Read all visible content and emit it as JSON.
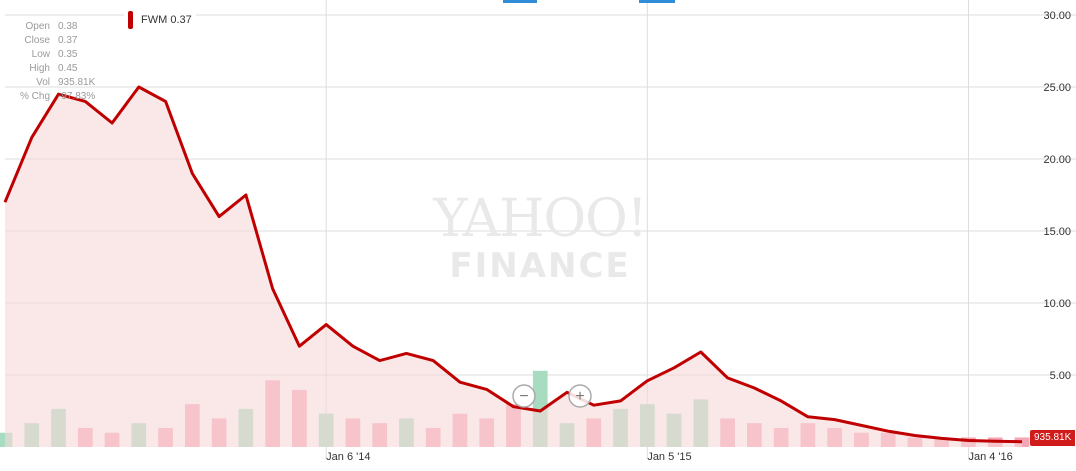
{
  "chart_data": {
    "type": "line",
    "series": [
      {
        "name": "FWM",
        "x": [
          "2013-01",
          "2013-02",
          "2013-03",
          "2013-04",
          "2013-05",
          "2013-06",
          "2013-07",
          "2013-08",
          "2013-09",
          "2013-10",
          "2013-11",
          "2013-12",
          "2014-01",
          "2014-02",
          "2014-03",
          "2014-04",
          "2014-05",
          "2014-06",
          "2014-07",
          "2014-08",
          "2014-09",
          "2014-10",
          "2014-11",
          "2014-12",
          "2015-01",
          "2015-02",
          "2015-03",
          "2015-04",
          "2015-05",
          "2015-06",
          "2015-07",
          "2015-08",
          "2015-09",
          "2015-10",
          "2015-11",
          "2015-12",
          "2016-01",
          "2016-02",
          "2016-03"
        ],
        "values": [
          17.0,
          21.5,
          24.5,
          24.0,
          22.5,
          25.0,
          24.0,
          19.0,
          16.0,
          17.5,
          11.0,
          7.0,
          8.5,
          7.0,
          6.0,
          6.5,
          6.0,
          4.5,
          4.0,
          2.8,
          2.5,
          3.8,
          2.9,
          3.2,
          4.6,
          5.5,
          6.6,
          4.8,
          4.1,
          3.2,
          2.1,
          1.9,
          1.5,
          1.1,
          0.8,
          0.6,
          0.45,
          0.4,
          0.37
        ]
      }
    ],
    "volume": {
      "x": [
        "2013-01",
        "2013-02",
        "2013-03",
        "2013-04",
        "2013-05",
        "2013-06",
        "2013-07",
        "2013-08",
        "2013-09",
        "2013-10",
        "2013-11",
        "2013-12",
        "2014-01",
        "2014-02",
        "2014-03",
        "2014-04",
        "2014-05",
        "2014-06",
        "2014-07",
        "2014-08",
        "2014-09",
        "2014-10",
        "2014-11",
        "2014-12",
        "2015-01",
        "2015-02",
        "2015-03",
        "2015-04",
        "2015-05",
        "2015-06",
        "2015-07",
        "2015-08",
        "2015-09",
        "2015-10",
        "2015-11",
        "2015-12",
        "2016-01",
        "2016-02",
        "2016-03"
      ],
      "values": [
        0.3,
        0.5,
        0.8,
        0.4,
        0.3,
        0.5,
        0.4,
        0.9,
        0.6,
        0.8,
        1.4,
        1.2,
        0.7,
        0.6,
        0.5,
        0.6,
        0.4,
        0.7,
        0.6,
        0.9,
        1.6,
        0.5,
        0.6,
        0.8,
        0.9,
        0.7,
        1.0,
        0.6,
        0.5,
        0.4,
        0.5,
        0.4,
        0.3,
        0.3,
        0.2,
        0.2,
        0.2,
        0.2,
        0.2
      ],
      "direction": [
        "up",
        "up",
        "up",
        "down",
        "down",
        "up",
        "down",
        "down",
        "down",
        "up",
        "down",
        "down",
        "up",
        "down",
        "down",
        "up",
        "down",
        "down",
        "down",
        "down",
        "up",
        "up",
        "down",
        "up",
        "up",
        "up",
        "up",
        "down",
        "down",
        "down",
        "down",
        "down",
        "down",
        "down",
        "down",
        "down",
        "down",
        "down",
        "down"
      ]
    },
    "yaxis": {
      "ticks": [
        "30.00",
        "25.00",
        "20.00",
        "15.00",
        "10.00",
        "5.00"
      ],
      "ylim": [
        0,
        30
      ]
    },
    "xaxis": {
      "ticks": [
        "Jan 6 '14",
        "Jan 5 '15",
        "Jan 4 '16"
      ]
    },
    "grid": true,
    "colors": {
      "line": "#c00000",
      "area": "#f7d9d9",
      "volume_up": "#a8dcc0",
      "volume_down": "#f4a6b5",
      "grid": "#dddddd",
      "badge": "#d11a1a"
    }
  },
  "legend": {
    "symbol": "FWM",
    "price": "0.37"
  },
  "ohlc": [
    {
      "label": "Open",
      "value": "0.38"
    },
    {
      "label": "Close",
      "value": "0.37"
    },
    {
      "label": "Low",
      "value": "0.35"
    },
    {
      "label": "High",
      "value": "0.45"
    },
    {
      "label": "Vol",
      "value": "935.81K"
    },
    {
      "label": "% Chg",
      "value": "-97.83%"
    }
  ],
  "watermark": {
    "line1": "YAHOO!",
    "line2": "FINANCE"
  },
  "price_badge": "935.81K",
  "zoom_controls": {
    "zoom_out": "−",
    "zoom_in": "+"
  }
}
